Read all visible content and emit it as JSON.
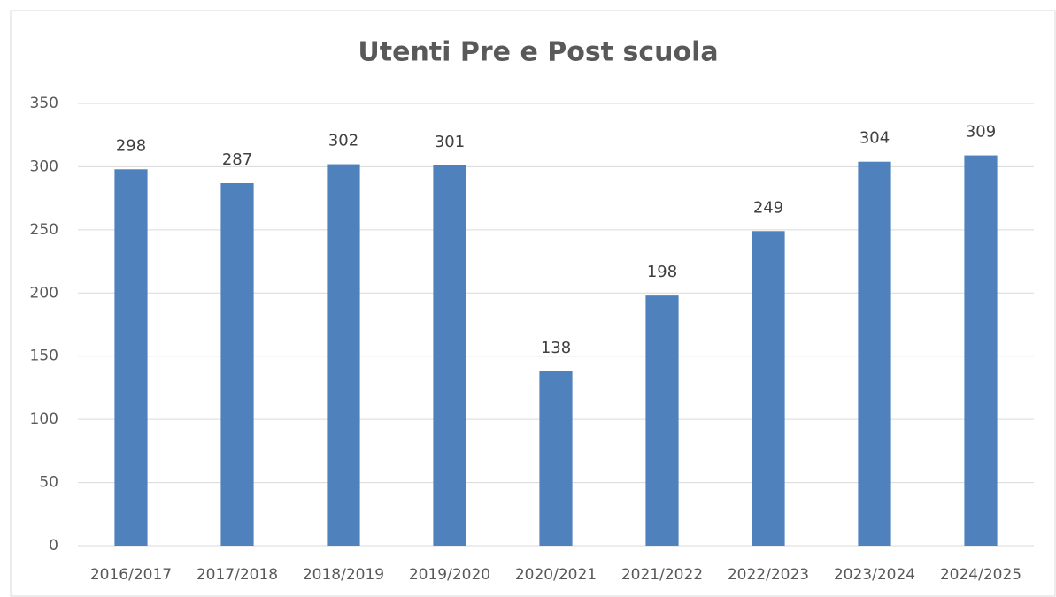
{
  "chart_data": {
    "type": "bar",
    "title": "Utenti Pre e Post scuola",
    "categories": [
      "2016/2017",
      "2017/2018",
      "2018/2019",
      "2019/2020",
      "2020/2021",
      "2021/2022",
      "2022/2023",
      "2023/2024",
      "2024/2025"
    ],
    "values": [
      298,
      287,
      302,
      301,
      138,
      198,
      249,
      304,
      309
    ],
    "color": "#4f81bd",
    "ylim": [
      0,
      350
    ],
    "yticks": [
      0,
      50,
      100,
      150,
      200,
      250,
      300,
      350
    ],
    "grid": true
  }
}
